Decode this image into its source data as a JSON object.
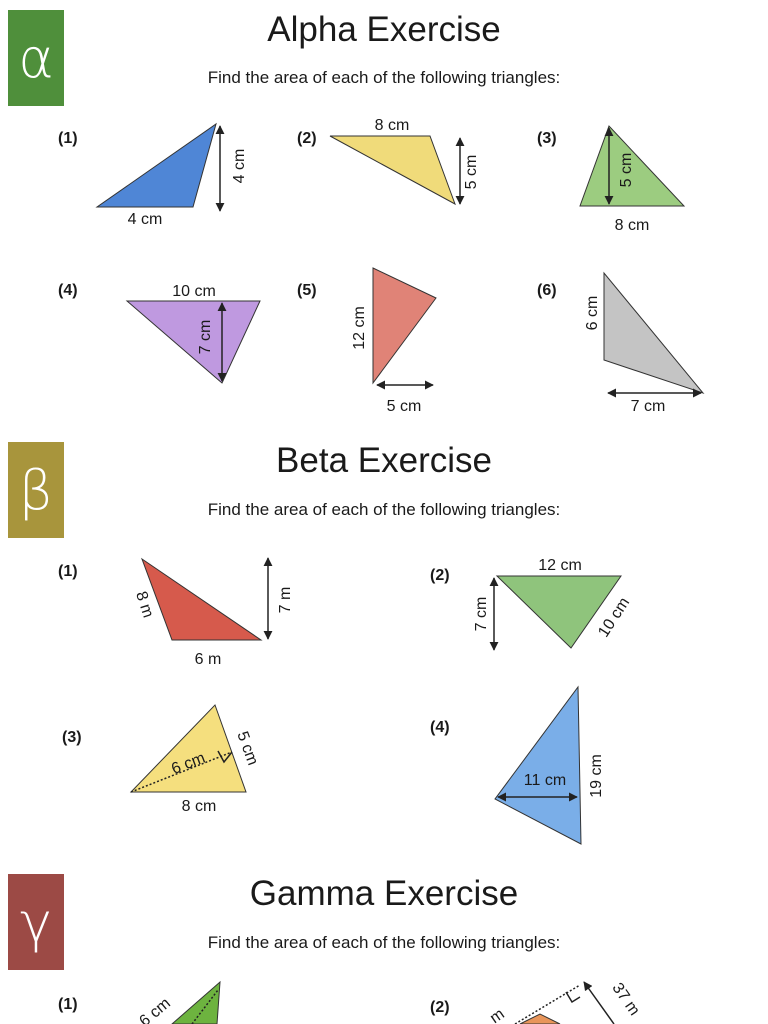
{
  "sections": [
    {
      "letter": "α",
      "badge_color": "#4f8f3b",
      "title": "Alpha Exercise",
      "instruction": "Find the area of each of the following triangles:",
      "questions": [
        {
          "label": "(1)",
          "base": "4 cm",
          "height": "4 cm",
          "color": "#4f86d6"
        },
        {
          "label": "(2)",
          "base": "8 cm",
          "height": "5 cm",
          "color": "#f0db7a"
        },
        {
          "label": "(3)",
          "base": "8 cm",
          "height": "5 cm",
          "color": "#9ccc80"
        },
        {
          "label": "(4)",
          "base": "10 cm",
          "height": "7 cm",
          "color": "#bf99e0"
        },
        {
          "label": "(5)",
          "base": "5 cm",
          "height": "12 cm",
          "color": "#e08377"
        },
        {
          "label": "(6)",
          "base": "7 cm",
          "height": "6 cm",
          "color": "#c4c4c4"
        }
      ]
    },
    {
      "letter": "β",
      "badge_color": "#a8953c",
      "title": "Beta Exercise",
      "instruction": "Find the area of each of the following triangles:",
      "questions": [
        {
          "label": "(1)",
          "side": "8 m",
          "height": "7 m",
          "base": "6 m",
          "color": "#d65a4c"
        },
        {
          "label": "(2)",
          "base": "12 cm",
          "height": "7 cm",
          "side": "10 cm",
          "color": "#8fc47c"
        },
        {
          "label": "(3)",
          "perp": "6 cm",
          "side": "5 cm",
          "base": "8 cm",
          "color": "#f5df7e"
        },
        {
          "label": "(4)",
          "inner": "11 cm",
          "side": "19 cm",
          "color": "#7aaee8"
        }
      ]
    },
    {
      "letter": "γ",
      "badge_color": "#9c4a45",
      "title": "Gamma Exercise",
      "instruction": "Find the area of each of the following triangles:",
      "questions": [
        {
          "label": "(1)",
          "side": "6 cm",
          "color": "#6db33f"
        },
        {
          "label": "(2)",
          "side": "37 m",
          "partial": "m",
          "color": "#e8955a"
        }
      ]
    }
  ]
}
